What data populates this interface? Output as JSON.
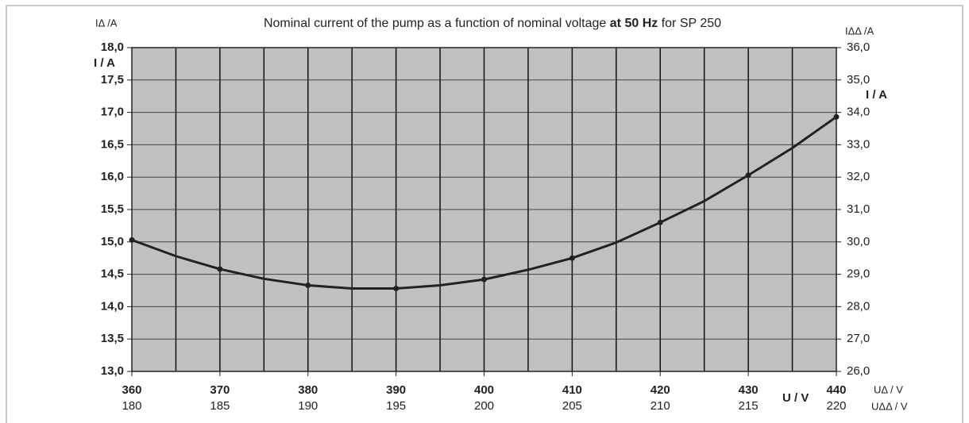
{
  "chart_data": {
    "type": "line",
    "title": "Nominal current of the pump as a function of nominal voltage",
    "title_emphasis": "at 50 Hz",
    "title_suffix": "for SP 250",
    "y_label_top": "IΔ /A",
    "y_label": "I / A",
    "y2_label_top": "IΔΔ /A",
    "y2_label": "I / A",
    "x_label": "U / V",
    "x_label_delta": "UΔ / V",
    "x2_label": "UΔΔ / V",
    "xlim": [
      360,
      440
    ],
    "xticks": [
      360,
      370,
      380,
      390,
      400,
      410,
      420,
      430,
      440
    ],
    "x2lim": [
      180,
      220
    ],
    "x2ticks": [
      180,
      185,
      190,
      195,
      200,
      205,
      210,
      215,
      220
    ],
    "ylim": [
      13,
      18
    ],
    "yticks": [
      {
        "value": 13,
        "label": "13,0"
      },
      {
        "value": 13.5,
        "label": "13,5"
      },
      {
        "value": 14,
        "label": "14,0"
      },
      {
        "value": 14.5,
        "label": "14,5"
      },
      {
        "value": 15,
        "label": "15,0"
      },
      {
        "value": 15.5,
        "label": "15,5"
      },
      {
        "value": 16,
        "label": "16,0"
      },
      {
        "value": 16.5,
        "label": "16,5"
      },
      {
        "value": 17,
        "label": "17,0"
      },
      {
        "value": 17.5,
        "label": "17,5"
      },
      {
        "value": 18,
        "label": "18,0"
      }
    ],
    "y2lim": [
      26,
      36
    ],
    "y2ticks": [
      {
        "value": 26,
        "label": "26,0"
      },
      {
        "value": 27,
        "label": "27,0"
      },
      {
        "value": 28,
        "label": "28,0"
      },
      {
        "value": 29,
        "label": "29,0"
      },
      {
        "value": 30,
        "label": "30,0"
      },
      {
        "value": 31,
        "label": "31,0"
      },
      {
        "value": 32,
        "label": "32,0"
      },
      {
        "value": 33,
        "label": "33,0"
      },
      {
        "value": 34,
        "label": "34,0"
      },
      {
        "value": 35,
        "label": "35,0"
      },
      {
        "value": 36,
        "label": "36,0"
      }
    ],
    "grid": true,
    "x_grid_step": 5,
    "background": "#c0c0c0",
    "x": [
      360,
      365,
      370,
      375,
      380,
      385,
      390,
      395,
      400,
      405,
      410,
      415,
      420,
      425,
      430,
      435,
      440
    ],
    "series": [
      {
        "color": "#222222",
        "values": [
          15.03,
          14.78,
          14.58,
          14.43,
          14.33,
          14.28,
          14.28,
          14.33,
          14.42,
          14.57,
          14.75,
          14.99,
          15.3,
          15.63,
          16.03,
          16.45,
          16.93
        ]
      }
    ]
  }
}
